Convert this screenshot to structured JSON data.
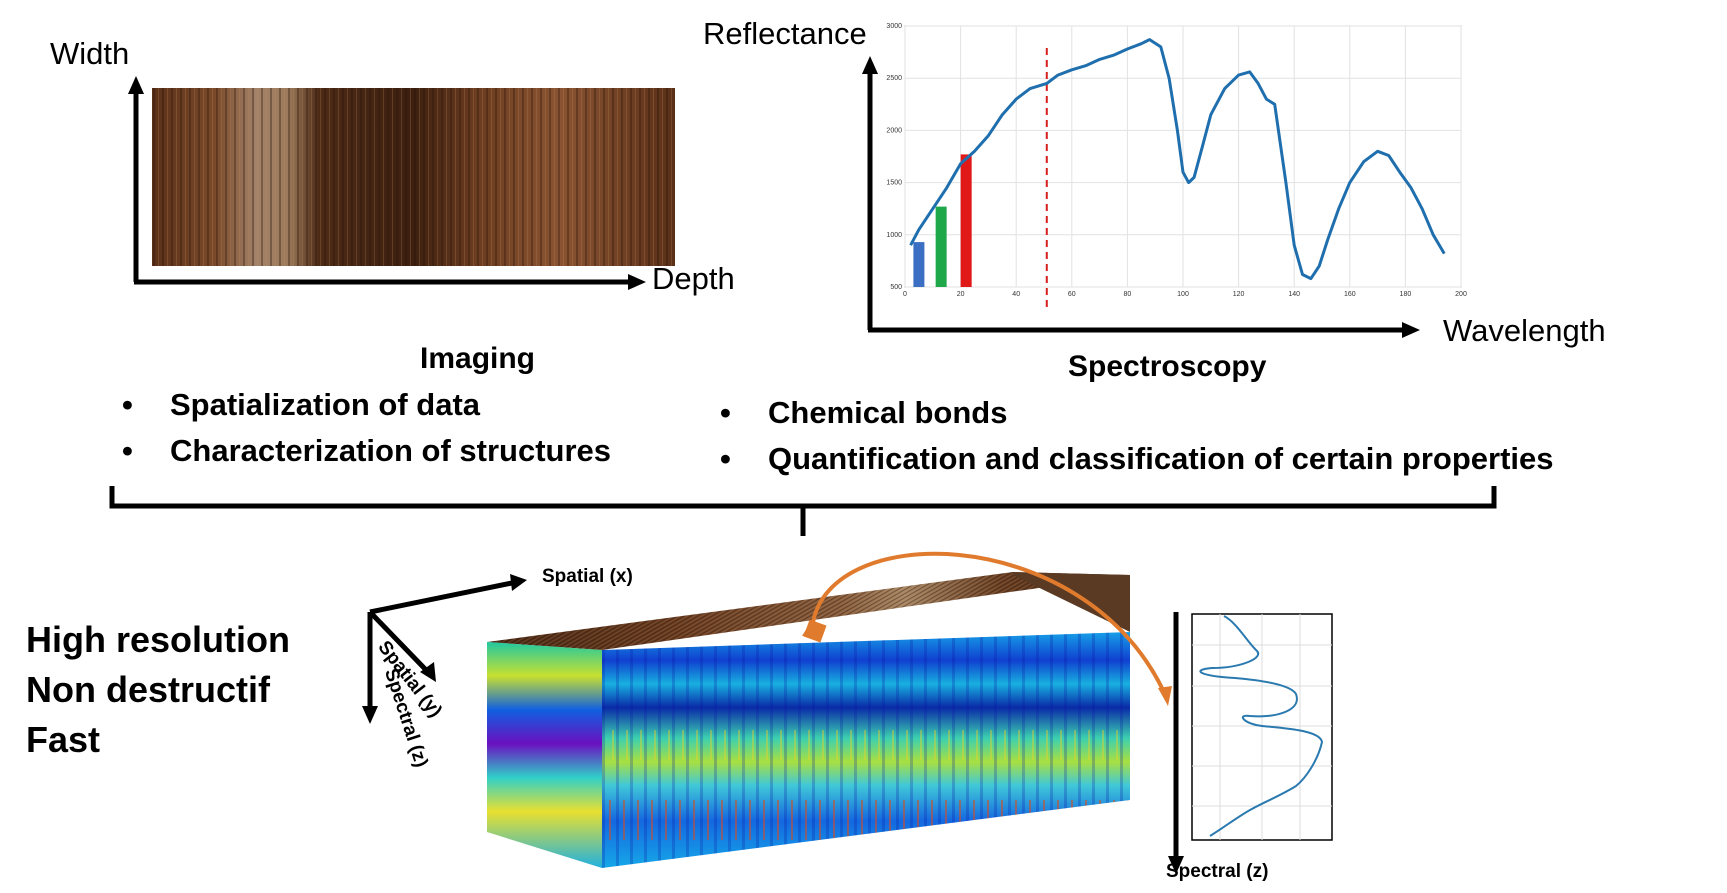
{
  "imaging_panel": {
    "y_axis_label": "Width",
    "x_axis_label": "Depth",
    "wood_colors": [
      "#4a2a16",
      "#6b3e22",
      "#8a5a3a",
      "#a98466",
      "#3a2010"
    ]
  },
  "spectroscopy_panel": {
    "y_axis_label": "Reflectance",
    "x_axis_label": "Wavelength"
  },
  "imaging_section": {
    "heading": "Imaging",
    "bullets": [
      "Spatialization of data",
      "Characterization of structures"
    ]
  },
  "spectroscopy_section": {
    "heading": "Spectroscopy",
    "bullets": [
      "Chemical bonds",
      "Quantification and classification of certain properties"
    ]
  },
  "bullet_symbol": "•",
  "properties": [
    "High resolution",
    "Non destructif",
    "Fast"
  ],
  "cube": {
    "axis_x": "Spatial (x)",
    "axis_y": "Spatial (y)",
    "axis_z": "Spectral (z)",
    "arrow_color": "#e07b2e"
  },
  "side_spectrum": {
    "axis_label": "Spectral (z)",
    "line_color": "#2a7ab0"
  },
  "chart_data": {
    "type": "line",
    "title": "",
    "xlabel": "",
    "ylabel": "",
    "xlim": [
      0,
      200
    ],
    "ylim": [
      500,
      3000
    ],
    "x_ticks": [
      0,
      20,
      40,
      60,
      80,
      100,
      120,
      140,
      160,
      180,
      200
    ],
    "y_ticks": [
      500,
      1000,
      1500,
      2000,
      2500,
      3000
    ],
    "grid": true,
    "line_color": "#1f6fae",
    "marker_line_x": 51,
    "marker_line_color": "#d62020",
    "series": [
      {
        "values_x": [
          2,
          5,
          10,
          15,
          20,
          25,
          30,
          35,
          40,
          45,
          51,
          55,
          60,
          65,
          70,
          75,
          80,
          85,
          88,
          92,
          95,
          98,
          100,
          102,
          104,
          107,
          110,
          115,
          120,
          124,
          127,
          130,
          133,
          137,
          140,
          143,
          146,
          149,
          152,
          156,
          160,
          165,
          170,
          174,
          178,
          182,
          186,
          190,
          194
        ],
        "values_y": [
          900,
          1050,
          1250,
          1450,
          1680,
          1800,
          1950,
          2150,
          2300,
          2400,
          2450,
          2530,
          2580,
          2620,
          2680,
          2720,
          2780,
          2830,
          2870,
          2800,
          2500,
          2000,
          1600,
          1500,
          1550,
          1850,
          2150,
          2400,
          2530,
          2560,
          2450,
          2300,
          2250,
          1500,
          900,
          620,
          580,
          700,
          950,
          1250,
          1500,
          1700,
          1800,
          1760,
          1600,
          1450,
          1250,
          1000,
          820
        ]
      }
    ],
    "bars": [
      {
        "x": 5,
        "value": 930,
        "color": "#3a6fc4"
      },
      {
        "x": 13,
        "value": 1270,
        "color": "#1fa84a"
      },
      {
        "x": 22,
        "value": 1770,
        "color": "#e01818"
      }
    ]
  }
}
